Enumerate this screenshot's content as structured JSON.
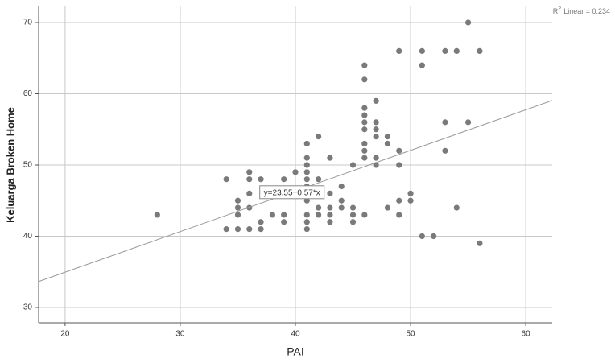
{
  "chart_data": {
    "type": "scatter",
    "x_label": "PAI",
    "y_label": "Keluarga Broken Home",
    "xlim": [
      17.7,
      62.3
    ],
    "ylim": [
      27.85,
      72.26
    ],
    "xticks": [
      20,
      30,
      40,
      50,
      60
    ],
    "yticks": [
      30,
      40,
      50,
      60,
      70
    ],
    "grid": true,
    "series": [
      {
        "color": "#7a7a7a",
        "x": [
          28,
          34,
          34,
          35,
          35,
          35,
          35,
          36,
          36,
          36,
          36,
          36,
          37,
          37,
          37,
          38,
          39,
          39,
          39,
          40,
          41,
          41,
          41,
          41,
          41,
          41,
          41,
          41,
          41,
          41,
          42,
          42,
          42,
          42,
          43,
          43,
          43,
          43,
          43,
          44,
          44,
          44,
          45,
          45,
          45,
          45,
          46,
          46,
          46,
          46,
          46,
          46,
          46,
          46,
          46,
          46,
          47,
          47,
          47,
          47,
          47,
          47,
          48,
          48,
          48,
          49,
          49,
          49,
          49,
          49,
          50,
          50,
          51,
          51,
          51,
          52,
          53,
          53,
          53,
          54,
          54,
          55,
          55,
          56,
          56
        ],
        "values": [
          43,
          48,
          41,
          45,
          44,
          43,
          41,
          49,
          48,
          46,
          44,
          41,
          48,
          42,
          41,
          43,
          48,
          43,
          42,
          49,
          53,
          51,
          50,
          49,
          48,
          47,
          45,
          43,
          42,
          41,
          54,
          48,
          44,
          43,
          51,
          46,
          44,
          43,
          42,
          47,
          45,
          44,
          50,
          44,
          43,
          42,
          64,
          62,
          58,
          57,
          56,
          55,
          53,
          52,
          51,
          43,
          59,
          56,
          55,
          54,
          51,
          50,
          54,
          53,
          44,
          66,
          52,
          50,
          45,
          43,
          46,
          45,
          66,
          64,
          40,
          40,
          66,
          56,
          52,
          66,
          44,
          70,
          56,
          66,
          39
        ]
      }
    ],
    "fit": {
      "intercept": 23.55,
      "slope": 0.57,
      "color": "#9a9a9a",
      "equation": "y=23.55+0.57*x",
      "r2_symbol": "R",
      "r2_exponent": "2",
      "r2_text": "Linear = 0.234"
    }
  }
}
